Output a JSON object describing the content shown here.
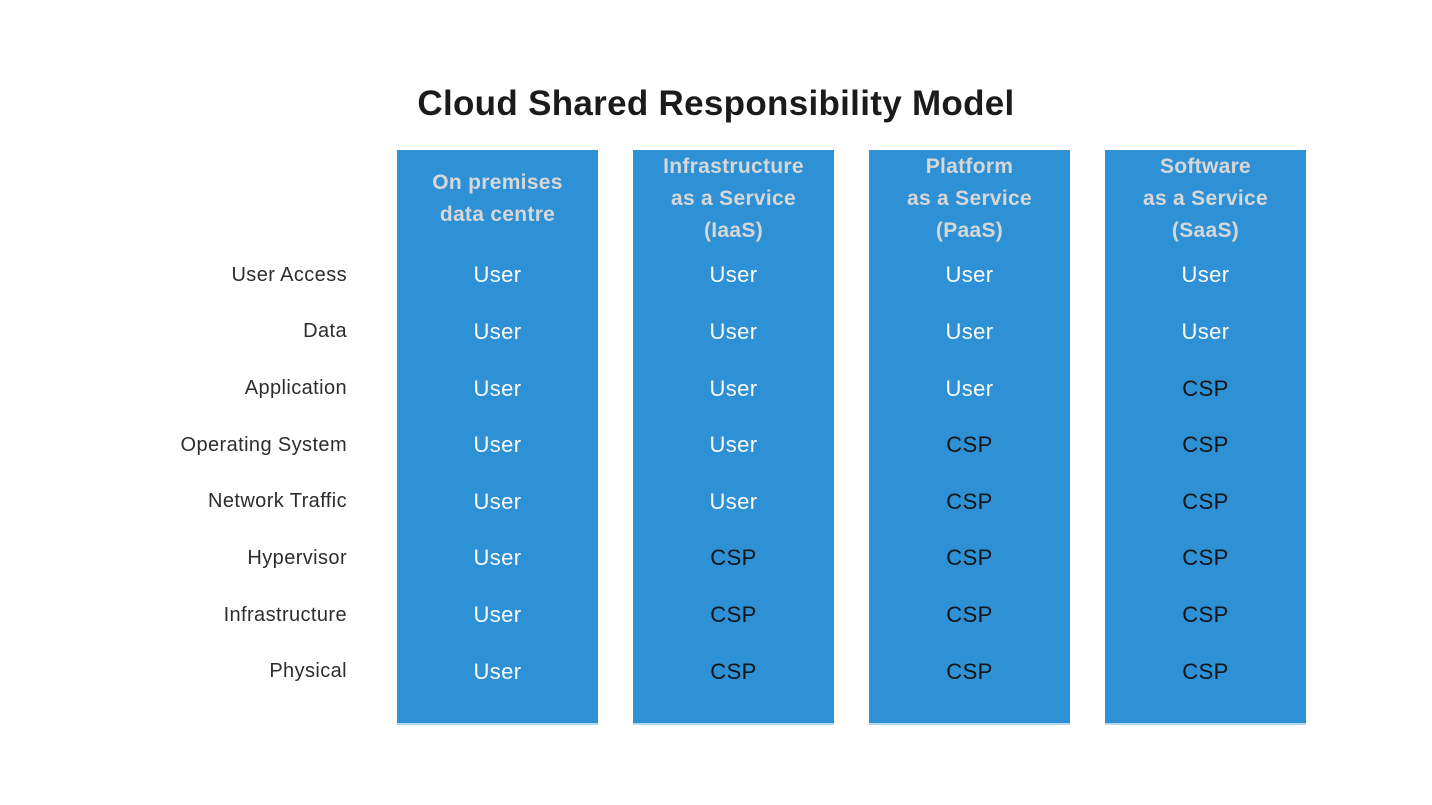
{
  "title": "Cloud Shared Responsibility Model",
  "colors": {
    "column_background": "#2e91d6",
    "header_text": "#d7d7d7",
    "user_cell_text": "#fbfbfb",
    "csp_cell_text": "#141414",
    "title_text": "#1b1b1b",
    "row_label_text": "#2d2d2d",
    "page_background": "#ffffff"
  },
  "rows": [
    "User Access",
    "Data",
    "Application",
    "Operating System",
    "Network Traffic",
    "Hypervisor",
    "Infrastructure",
    "Physical"
  ],
  "columns": [
    {
      "id": "on-premises",
      "header_lines": [
        "On premises",
        "data centre",
        ""
      ],
      "cells": [
        "User",
        "User",
        "User",
        "User",
        "User",
        "User",
        "User",
        "User"
      ]
    },
    {
      "id": "iaas",
      "header_lines": [
        "Infrastructure",
        "as a Service",
        "(IaaS)"
      ],
      "cells": [
        "User",
        "User",
        "User",
        "User",
        "User",
        "CSP",
        "CSP",
        "CSP"
      ]
    },
    {
      "id": "paas",
      "header_lines": [
        "Platform",
        "as a Service",
        "(PaaS)"
      ],
      "cells": [
        "User",
        "User",
        "User",
        "CSP",
        "CSP",
        "CSP",
        "CSP",
        "CSP"
      ]
    },
    {
      "id": "saas",
      "header_lines": [
        "Software",
        "as a Service",
        "(SaaS)"
      ],
      "cells": [
        "User",
        "User",
        "CSP",
        "CSP",
        "CSP",
        "CSP",
        "CSP",
        "CSP"
      ]
    }
  ]
}
